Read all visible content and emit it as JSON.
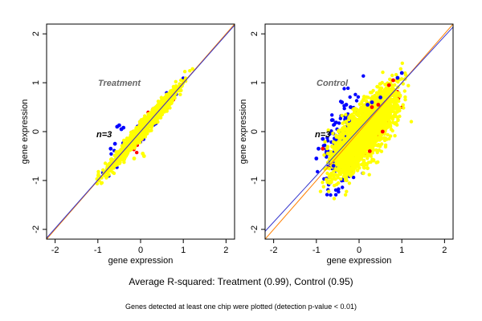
{
  "chart_data": [
    {
      "type": "scatter",
      "annotation": "Treatment",
      "n_label": "n=3",
      "xlabel": "gene expression",
      "ylabel": "gene expression",
      "xlim": [
        -2.2,
        2.2
      ],
      "ylim": [
        -2.2,
        2.2
      ],
      "xticks": [
        "-2",
        "-1",
        "0",
        "1",
        "2"
      ],
      "yticks": [
        "-2",
        "-1",
        "0",
        "1",
        "2"
      ],
      "point_colors": {
        "blue": "#0000ff",
        "red": "#ff0000",
        "yellow": "#ffff00"
      },
      "cloud": {
        "yellow": {
          "x_range": [
            -1.15,
            1.25
          ],
          "slope": 1.0,
          "intercept": 0.0,
          "spread": 0.08
        },
        "blue": {
          "x_range": [
            -1.1,
            1.2
          ],
          "slope": 1.0,
          "intercept": 0.0,
          "spread": 0.11
        },
        "red": {
          "x_range": [
            -0.9,
            1.1
          ],
          "slope": 1.0,
          "intercept": 0.0,
          "spread": 0.1
        }
      },
      "outliers": {
        "blue": [
          [
            -0.55,
            0.1
          ],
          [
            -0.45,
            0.05
          ],
          [
            -0.5,
            0.13
          ],
          [
            -0.4,
            0.08
          ],
          [
            -0.6,
            -0.25
          ],
          [
            -0.7,
            -0.35
          ]
        ],
        "yellow": [
          [
            0.05,
            -0.45
          ],
          [
            0.08,
            -0.5
          ],
          [
            -0.15,
            -0.55
          ]
        ]
      },
      "fit_lines": [
        {
          "color": "#ff7f00",
          "slope": 1.0,
          "intercept": 0.0
        },
        {
          "color": "#3333cc",
          "slope": 0.99,
          "intercept": 0.0
        }
      ]
    },
    {
      "type": "scatter",
      "annotation": "Control",
      "n_label": "n=3",
      "xlabel": "gene expression",
      "ylabel": "gene expression",
      "xlim": [
        -2.2,
        2.2
      ],
      "ylim": [
        -2.2,
        2.2
      ],
      "xticks": [
        "-2",
        "-1",
        "0",
        "1",
        "2"
      ],
      "yticks": [
        "-2",
        "-1",
        "0",
        "1",
        "2"
      ],
      "point_colors": {
        "blue": "#0000ff",
        "red": "#ff0000",
        "yellow": "#ffff00"
      },
      "cloud": {
        "yellow": {
          "x_range": [
            -1.0,
            1.25
          ],
          "slope": 0.85,
          "intercept": -0.12,
          "spread": 0.28
        },
        "blue": {
          "x_range": [
            -1.05,
            0.4
          ],
          "slope": 0.8,
          "intercept": 0.05,
          "spread": 0.38
        },
        "red": {
          "x_range": [
            -0.6,
            1.1
          ],
          "slope": 0.85,
          "intercept": -0.1,
          "spread": 0.25
        }
      },
      "outliers": {
        "blue": [
          [
            -0.4,
            0.6
          ],
          [
            -0.3,
            0.55
          ],
          [
            -0.2,
            0.5
          ],
          [
            0.2,
            0.55
          ],
          [
            0.3,
            0.6
          ],
          [
            0.5,
            0.7
          ],
          [
            -0.85,
            -0.15
          ],
          [
            -0.95,
            -0.35
          ],
          [
            -1.0,
            -0.55
          ],
          [
            -0.6,
            -0.7
          ],
          [
            0.9,
            1.1
          ],
          [
            1.0,
            1.2
          ]
        ],
        "red": [
          [
            0.7,
            0.95
          ],
          [
            0.8,
            1.05
          ],
          [
            0.45,
            0.55
          ],
          [
            0.3,
            0.5
          ],
          [
            -0.85,
            -0.35
          ],
          [
            0.25,
            -0.4
          ],
          [
            0.55,
            0.0
          ]
        ],
        "yellow": [
          [
            0.2,
            -0.75
          ],
          [
            0.1,
            -0.85
          ],
          [
            -0.2,
            -0.9
          ]
        ]
      },
      "fit_lines": [
        {
          "color": "#ff7f00",
          "slope": 1.0,
          "intercept": 0.0
        },
        {
          "color": "#3333cc",
          "slope": 0.95,
          "intercept": 0.05
        }
      ]
    }
  ],
  "caption": "Average R-squared: Treatment (0.99), Control (0.95)",
  "footnote": "Genes detected at least one chip were plotted (detection p-value < 0.01)"
}
